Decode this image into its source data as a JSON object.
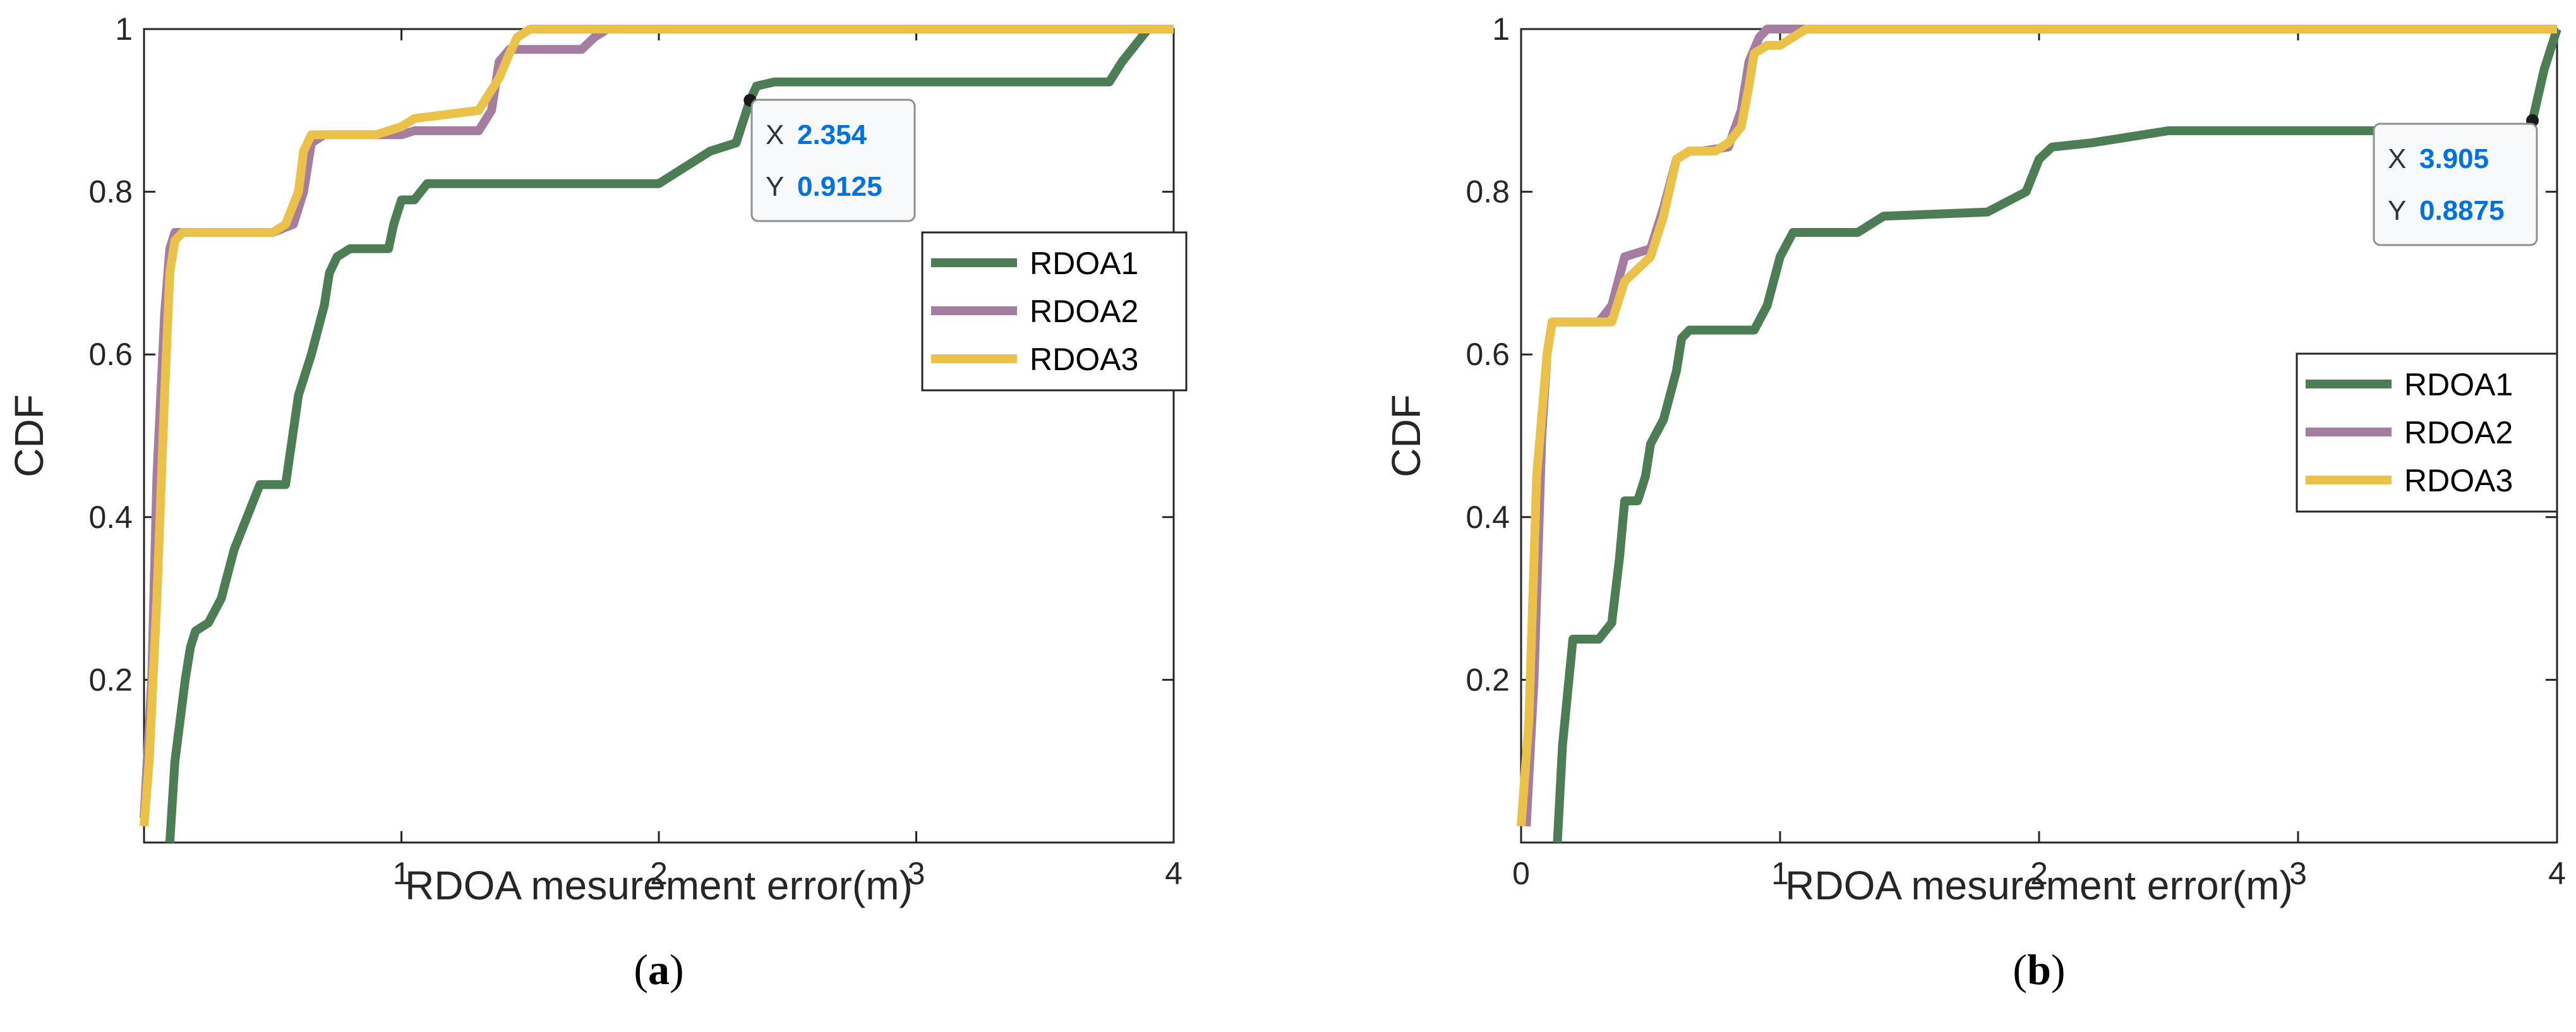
{
  "chart_data": [
    {
      "type": "line",
      "panel": "(a)",
      "caption_letter": "a",
      "xlabel": "RDOA mesurement error(m)",
      "ylabel": "CDF",
      "xlim": [
        0,
        4
      ],
      "ylim": [
        0,
        1
      ],
      "xticks": [
        1,
        2,
        3,
        4
      ],
      "yticks": [
        0.2,
        0.4,
        0.6,
        0.8,
        1
      ],
      "legend_position": "right-middle",
      "series": [
        {
          "name": "RDOA1",
          "color": "#4c7d55",
          "x": [
            0.1,
            0.12,
            0.14,
            0.16,
            0.18,
            0.2,
            0.25,
            0.3,
            0.35,
            0.4,
            0.45,
            0.5,
            0.55,
            0.6,
            0.65,
            0.7,
            0.72,
            0.75,
            0.8,
            0.85,
            0.95,
            0.97,
            1.0,
            1.05,
            1.1,
            1.2,
            1.5,
            2.0,
            2.2,
            2.3,
            2.354,
            2.38,
            2.45,
            3.0,
            3.5,
            3.75,
            3.8,
            3.85,
            3.9,
            4.0
          ],
          "y": [
            0.0,
            0.1,
            0.15,
            0.2,
            0.24,
            0.26,
            0.27,
            0.3,
            0.36,
            0.4,
            0.44,
            0.44,
            0.44,
            0.55,
            0.6,
            0.66,
            0.7,
            0.72,
            0.73,
            0.73,
            0.73,
            0.76,
            0.79,
            0.79,
            0.81,
            0.81,
            0.81,
            0.81,
            0.85,
            0.86,
            0.9125,
            0.93,
            0.935,
            0.935,
            0.935,
            0.935,
            0.96,
            0.98,
            1.0,
            1.0
          ]
        },
        {
          "name": "RDOA2",
          "color": "#a47da0",
          "x": [
            0.0,
            0.03,
            0.05,
            0.08,
            0.1,
            0.12,
            0.14,
            0.5,
            0.58,
            0.62,
            0.65,
            0.7,
            1.0,
            1.05,
            1.3,
            1.35,
            1.38,
            1.42,
            1.7,
            1.75,
            1.8,
            4.0
          ],
          "y": [
            0.03,
            0.2,
            0.45,
            0.65,
            0.73,
            0.75,
            0.75,
            0.75,
            0.76,
            0.8,
            0.86,
            0.87,
            0.87,
            0.875,
            0.875,
            0.9,
            0.96,
            0.975,
            0.975,
            0.99,
            1.0,
            1.0
          ]
        },
        {
          "name": "RDOA3",
          "color": "#eac24a",
          "x": [
            0.0,
            0.02,
            0.05,
            0.08,
            0.1,
            0.12,
            0.15,
            0.5,
            0.55,
            0.6,
            0.62,
            0.65,
            0.7,
            0.9,
            1.0,
            1.05,
            1.3,
            1.38,
            1.42,
            1.45,
            1.5,
            4.0
          ],
          "y": [
            0.02,
            0.1,
            0.3,
            0.55,
            0.7,
            0.74,
            0.75,
            0.75,
            0.76,
            0.8,
            0.85,
            0.87,
            0.87,
            0.87,
            0.88,
            0.89,
            0.9,
            0.94,
            0.97,
            0.99,
            1.0,
            1.0
          ]
        }
      ],
      "datatip": {
        "x_key": "X",
        "x_value": "2.354",
        "y_key": "Y",
        "y_value": "0.9125",
        "point_x": 2.354,
        "point_y": 0.9125
      }
    },
    {
      "type": "line",
      "panel": "(b)",
      "caption_letter": "b",
      "xlabel": "RDOA mesurement error(m)",
      "ylabel": "CDF",
      "xlim": [
        0,
        4
      ],
      "ylim": [
        0,
        1
      ],
      "xticks": [
        0,
        1,
        2,
        3,
        4
      ],
      "yticks": [
        0.2,
        0.4,
        0.6,
        0.8,
        1
      ],
      "legend_position": "right-middle",
      "series": [
        {
          "name": "RDOA1",
          "color": "#4c7d55",
          "x": [
            0.14,
            0.16,
            0.2,
            0.3,
            0.35,
            0.38,
            0.4,
            0.45,
            0.48,
            0.5,
            0.55,
            0.6,
            0.62,
            0.65,
            0.7,
            0.9,
            0.95,
            1.0,
            1.05,
            1.3,
            1.35,
            1.4,
            1.8,
            1.95,
            2.0,
            2.05,
            2.2,
            2.3,
            2.5,
            3.0,
            3.5,
            3.9,
            3.905,
            3.95,
            4.0
          ],
          "y": [
            0.0,
            0.12,
            0.25,
            0.25,
            0.27,
            0.35,
            0.42,
            0.42,
            0.45,
            0.49,
            0.52,
            0.58,
            0.62,
            0.63,
            0.63,
            0.63,
            0.66,
            0.72,
            0.75,
            0.75,
            0.76,
            0.77,
            0.775,
            0.8,
            0.84,
            0.855,
            0.86,
            0.865,
            0.875,
            0.875,
            0.875,
            0.875,
            0.8875,
            0.95,
            1.0
          ]
        },
        {
          "name": "RDOA2",
          "color": "#a47da0",
          "x": [
            0.02,
            0.05,
            0.08,
            0.1,
            0.12,
            0.3,
            0.35,
            0.4,
            0.45,
            0.5,
            0.55,
            0.6,
            0.65,
            0.7,
            0.8,
            0.85,
            0.88,
            0.92,
            0.95,
            1.0,
            4.0
          ],
          "y": [
            0.02,
            0.2,
            0.5,
            0.6,
            0.64,
            0.64,
            0.66,
            0.72,
            0.725,
            0.73,
            0.78,
            0.84,
            0.85,
            0.85,
            0.855,
            0.9,
            0.96,
            0.99,
            1.0,
            1.0,
            1.0
          ]
        },
        {
          "name": "RDOA3",
          "color": "#eac24a",
          "x": [
            0.0,
            0.03,
            0.06,
            0.1,
            0.12,
            0.3,
            0.35,
            0.4,
            0.5,
            0.55,
            0.6,
            0.65,
            0.75,
            0.8,
            0.85,
            0.88,
            0.9,
            0.95,
            1.0,
            1.05,
            1.1,
            4.0
          ],
          "y": [
            0.02,
            0.15,
            0.45,
            0.6,
            0.64,
            0.64,
            0.64,
            0.69,
            0.72,
            0.77,
            0.84,
            0.85,
            0.85,
            0.86,
            0.88,
            0.93,
            0.97,
            0.98,
            0.98,
            0.99,
            1.0,
            1.0
          ]
        }
      ],
      "datatip": {
        "x_key": "X",
        "x_value": "3.905",
        "y_key": "Y",
        "y_value": "0.8875",
        "point_x": 3.905,
        "point_y": 0.8875
      }
    }
  ]
}
